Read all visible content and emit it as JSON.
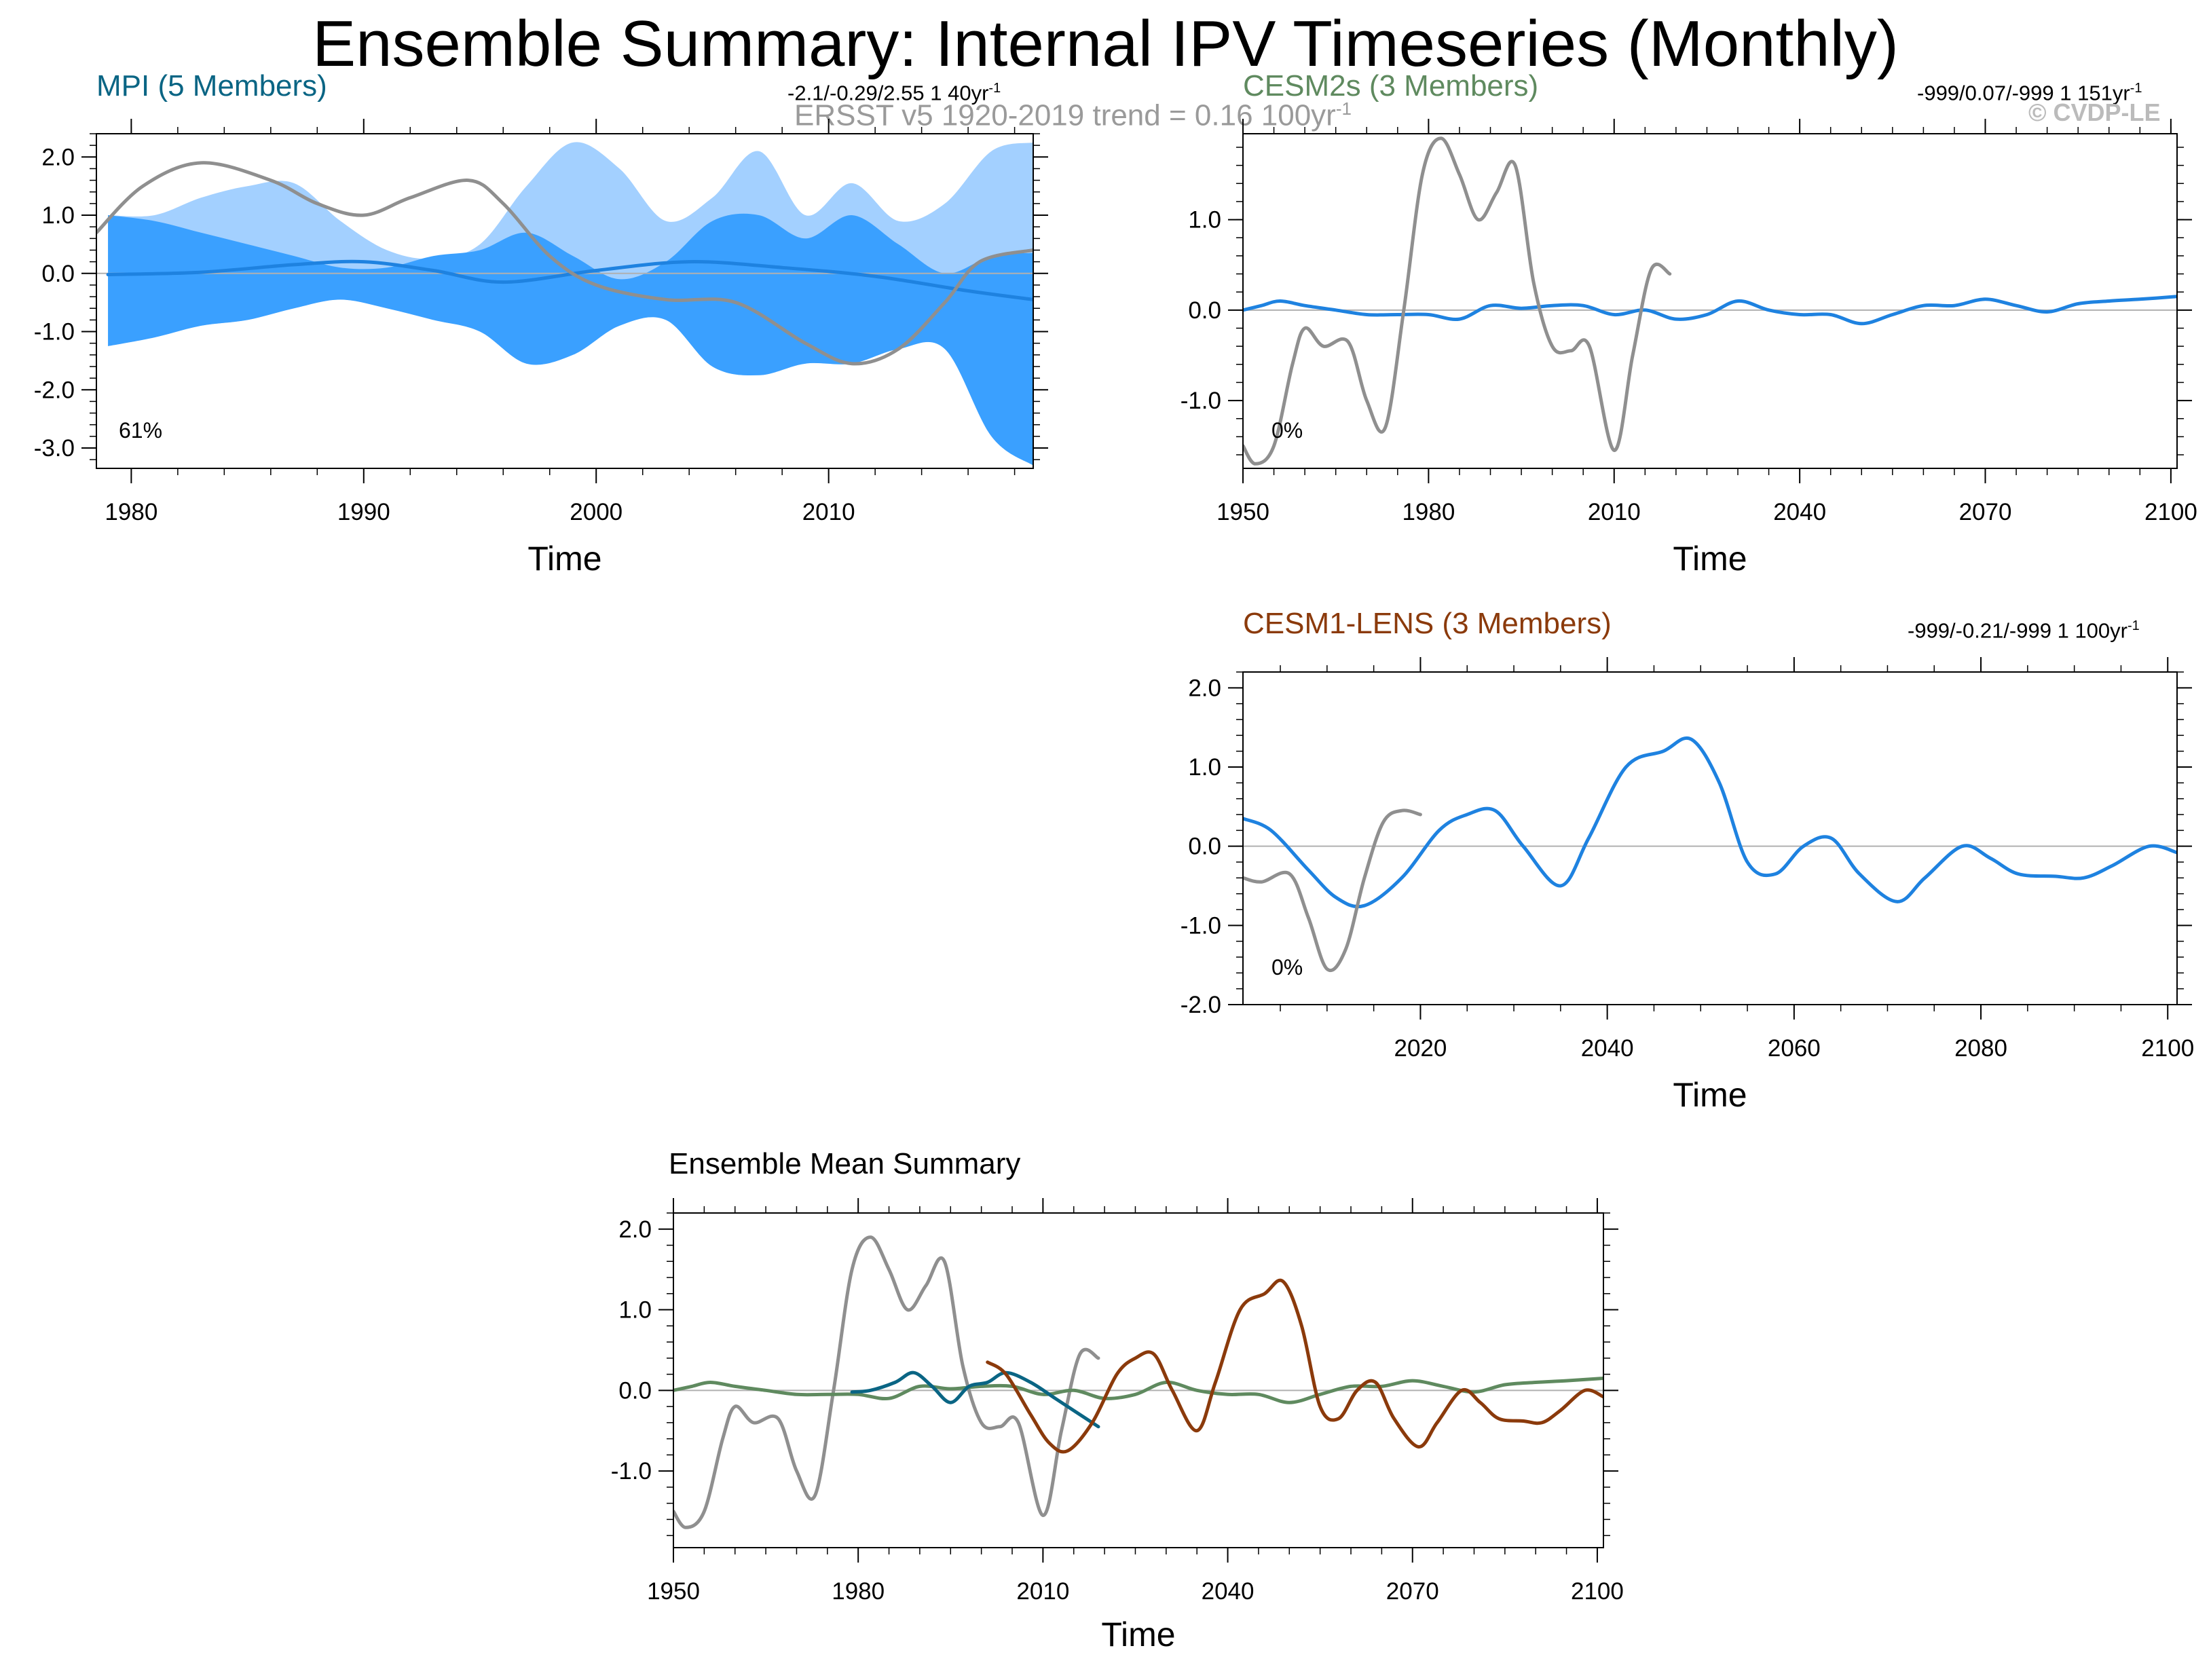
{
  "title": "Ensemble Summary: Internal IPV Timeseries (Monthly)",
  "colors": {
    "mpi": "#0a6584",
    "cesm2": "#5f8a5f",
    "cesm1": "#8b3a0b",
    "obs": "#8f8f8f",
    "mean": "#1e82e0",
    "spread_outer": "#a3d0ff",
    "spread_inner": "#3aa0ff",
    "axis": "#000000",
    "zero": "#b0b0b0",
    "copyright": "#bbbbbb"
  },
  "copyright": "© CVDP-LE",
  "observations_label": "ERSST v5 1920-2019 trend = 0.16 100yr",
  "observations_label_sup": "-1",
  "chart_data": [
    {
      "id": "mpi",
      "type": "line",
      "title": "MPI (5 Members)",
      "stats": "-2.1/-0.29/2.55 1 40yr",
      "stats_sup": "-1",
      "percent_label": "61%",
      "xlabel": "Time",
      "ylabel": "",
      "xlim": [
        1978.5,
        2018.8
      ],
      "ylim": [
        -3.35,
        2.4
      ],
      "xticks": [
        1980,
        1990,
        2000,
        2010
      ],
      "yticks": [
        2.0,
        1.0,
        0.0,
        -1.0,
        -2.0,
        -3.0
      ],
      "ytick_labels": [
        "2.0",
        "1.0",
        "0.0",
        "-1.0",
        "-2.0",
        "-3.0"
      ],
      "series": [
        {
          "name": "Ensemble spread (min-max)",
          "kind": "band",
          "color_key": "spread_outer",
          "x": [
            1979,
            1981,
            1983,
            1985,
            1987,
            1989,
            1991,
            1993,
            1995,
            1997,
            1999,
            2001,
            2003,
            2005,
            2007,
            2009,
            2011,
            2013,
            2015,
            2017,
            2018.8
          ],
          "upper": [
            1.0,
            1.0,
            1.3,
            1.5,
            1.55,
            0.9,
            0.4,
            0.25,
            0.5,
            1.5,
            2.25,
            1.8,
            0.9,
            1.3,
            2.1,
            1.0,
            1.55,
            0.9,
            1.2,
            2.1,
            2.25
          ],
          "lower": [
            -1.25,
            -1.1,
            -0.9,
            -0.8,
            -0.6,
            -0.45,
            -0.6,
            -0.8,
            -1.0,
            -1.55,
            -1.4,
            -0.9,
            -0.8,
            -1.6,
            -1.75,
            -1.55,
            -1.55,
            -1.3,
            -1.3,
            -2.8,
            -3.3
          ]
        },
        {
          "name": "Ensemble spread (10-90%)",
          "kind": "band",
          "color_key": "spread_inner",
          "x": [
            1979,
            1981,
            1983,
            1985,
            1987,
            1989,
            1991,
            1993,
            1995,
            1997,
            1999,
            2001,
            2003,
            2005,
            2007,
            2009,
            2011,
            2013,
            2015,
            2017,
            2018.8
          ],
          "upper": [
            1.0,
            0.9,
            0.7,
            0.5,
            0.3,
            0.1,
            0.1,
            0.3,
            0.4,
            0.7,
            0.3,
            -0.1,
            0.2,
            0.9,
            1.0,
            0.6,
            1.0,
            0.5,
            0.0,
            0.3,
            0.35
          ],
          "lower": [
            -1.25,
            -1.1,
            -0.9,
            -0.8,
            -0.6,
            -0.45,
            -0.6,
            -0.8,
            -1.0,
            -1.55,
            -1.4,
            -0.9,
            -0.8,
            -1.6,
            -1.75,
            -1.55,
            -1.55,
            -1.3,
            -1.3,
            -2.8,
            -3.3
          ]
        },
        {
          "name": "Ensemble mean",
          "kind": "line",
          "color_key": "mean",
          "width": 5,
          "x": [
            1979,
            1983,
            1987,
            1990,
            1993,
            1996,
            2000,
            2004,
            2008,
            2012,
            2016,
            2018.8
          ],
          "y": [
            -0.02,
            0.02,
            0.15,
            0.2,
            0.05,
            -0.15,
            0.05,
            0.2,
            0.1,
            -0.05,
            -0.3,
            -0.45
          ]
        },
        {
          "name": "ERSST v5",
          "kind": "line",
          "color_key": "obs",
          "width": 5,
          "x": [
            1978.5,
            1980.5,
            1983,
            1986,
            1988,
            1990,
            1992,
            1994.5,
            1996,
            1998,
            2000,
            2003,
            2006,
            2009,
            2011,
            2013,
            2015,
            2016.5,
            2018.8
          ],
          "y": [
            0.7,
            1.5,
            1.9,
            1.6,
            1.2,
            1.0,
            1.3,
            1.6,
            1.2,
            0.3,
            -0.2,
            -0.45,
            -0.5,
            -1.2,
            -1.55,
            -1.3,
            -0.5,
            0.2,
            0.4
          ]
        }
      ]
    },
    {
      "id": "cesm2",
      "type": "line",
      "title": "CESM2s (3 Members)",
      "stats": "-999/0.07/-999 1 151yr",
      "stats_sup": "-1",
      "percent_label": "0%",
      "xlabel": "Time",
      "ylabel": "",
      "xlim": [
        1950,
        2101
      ],
      "ylim": [
        -1.75,
        1.95
      ],
      "xticks": [
        1950,
        1980,
        2010,
        2040,
        2070,
        2100
      ],
      "yticks": [
        1.0,
        0.0,
        -1.0
      ],
      "ytick_labels": [
        "1.0",
        "0.0",
        "-1.0"
      ],
      "series": [
        {
          "name": "Ensemble mean",
          "kind": "line",
          "color_key": "mean",
          "width": 5,
          "x": [
            1950,
            1953,
            1956,
            1960,
            1965,
            1970,
            1975,
            1980,
            1985,
            1990,
            1995,
            2000,
            2005,
            2010,
            2015,
            2020,
            2025,
            2030,
            2035,
            2040,
            2045,
            2050,
            2055,
            2060,
            2065,
            2070,
            2075,
            2080,
            2085,
            2090,
            2095,
            2101
          ],
          "y": [
            0.0,
            0.05,
            0.1,
            0.05,
            0.0,
            -0.05,
            -0.05,
            -0.05,
            -0.1,
            0.05,
            0.02,
            0.05,
            0.05,
            -0.05,
            0.0,
            -0.1,
            -0.05,
            0.1,
            0.0,
            -0.05,
            -0.05,
            -0.15,
            -0.05,
            0.05,
            0.05,
            0.12,
            0.05,
            -0.02,
            0.07,
            0.1,
            0.12,
            0.15
          ]
        },
        {
          "name": "ERSST v5",
          "kind": "line",
          "color_key": "obs",
          "width": 5,
          "x": [
            1950,
            1952,
            1955,
            1958,
            1960,
            1963,
            1967,
            1970,
            1973,
            1976,
            1979,
            1982,
            1985,
            1988,
            1991,
            1994,
            1997,
            2000,
            2003,
            2006,
            2010,
            2013,
            2016,
            2019
          ],
          "y": [
            -1.5,
            -1.7,
            -1.5,
            -0.6,
            -0.2,
            -0.4,
            -0.35,
            -1.0,
            -1.3,
            0.0,
            1.5,
            1.9,
            1.5,
            1.0,
            1.3,
            1.6,
            0.3,
            -0.4,
            -0.45,
            -0.4,
            -1.55,
            -0.5,
            0.45,
            0.4
          ]
        }
      ]
    },
    {
      "id": "cesm1",
      "type": "line",
      "title": "CESM1-LENS (3 Members)",
      "stats": "-999/-0.21/-999 1 100yr",
      "stats_sup": "-1",
      "percent_label": "0%",
      "xlabel": "Time",
      "ylabel": "",
      "xlim": [
        2001,
        2101
      ],
      "ylim": [
        -2.0,
        2.2
      ],
      "xticks": [
        2020,
        2040,
        2060,
        2080,
        2100
      ],
      "yticks": [
        2.0,
        1.0,
        0.0,
        -1.0,
        -2.0
      ],
      "ytick_labels": [
        "2.0",
        "1.0",
        "0.0",
        "-1.0",
        "-2.0"
      ],
      "series": [
        {
          "name": "Ensemble mean",
          "kind": "line",
          "color_key": "mean",
          "width": 5,
          "x": [
            2001,
            2004,
            2008,
            2011,
            2014,
            2018,
            2022,
            2025,
            2028,
            2031,
            2035,
            2038,
            2042,
            2046,
            2049,
            2052,
            2055,
            2058,
            2061,
            2064,
            2067,
            2071,
            2074,
            2078,
            2081,
            2084,
            2088,
            2091,
            2094,
            2098,
            2101
          ],
          "y": [
            0.35,
            0.2,
            -0.3,
            -0.65,
            -0.75,
            -0.4,
            0.2,
            0.4,
            0.45,
            0.0,
            -0.5,
            0.1,
            1.0,
            1.2,
            1.35,
            0.8,
            -0.2,
            -0.35,
            0.0,
            0.1,
            -0.35,
            -0.7,
            -0.4,
            0.0,
            -0.15,
            -0.35,
            -0.38,
            -0.4,
            -0.25,
            0.0,
            -0.08
          ]
        },
        {
          "name": "ERSST v5",
          "kind": "line",
          "color_key": "obs",
          "width": 5,
          "x": [
            2001,
            2003,
            2006,
            2008,
            2010,
            2012,
            2014,
            2016,
            2018,
            2020
          ],
          "y": [
            -0.4,
            -0.45,
            -0.35,
            -0.9,
            -1.55,
            -1.3,
            -0.4,
            0.3,
            0.45,
            0.4
          ]
        }
      ]
    },
    {
      "id": "ensemble-mean",
      "type": "line",
      "title": "Ensemble Mean Summary",
      "xlabel": "Time",
      "ylabel": "",
      "xlim": [
        1950,
        2101
      ],
      "ylim": [
        -1.95,
        2.2
      ],
      "xticks": [
        1950,
        1980,
        2010,
        2040,
        2070,
        2100
      ],
      "yticks": [
        2.0,
        1.0,
        0.0,
        -1.0
      ],
      "ytick_labels": [
        "2.0",
        "1.0",
        "0.0",
        "-1.0"
      ],
      "series": [
        {
          "name": "ERSST v5",
          "kind": "line",
          "color_key": "obs",
          "width": 5,
          "x": [
            1950,
            1952,
            1955,
            1958,
            1960,
            1963,
            1967,
            1970,
            1973,
            1976,
            1979,
            1982,
            1985,
            1988,
            1991,
            1994,
            1997,
            2000,
            2003,
            2006,
            2010,
            2013,
            2016,
            2019
          ],
          "y": [
            -1.5,
            -1.7,
            -1.5,
            -0.6,
            -0.2,
            -0.4,
            -0.35,
            -1.0,
            -1.3,
            0.0,
            1.5,
            1.9,
            1.5,
            1.0,
            1.3,
            1.6,
            0.3,
            -0.4,
            -0.45,
            -0.4,
            -1.55,
            -0.5,
            0.45,
            0.4
          ]
        },
        {
          "name": "CESM2s",
          "kind": "line",
          "color_key": "cesm2",
          "width": 5,
          "x": [
            1950,
            1953,
            1956,
            1960,
            1965,
            1970,
            1975,
            1980,
            1985,
            1990,
            1995,
            2000,
            2005,
            2010,
            2015,
            2020,
            2025,
            2030,
            2035,
            2040,
            2045,
            2050,
            2055,
            2060,
            2065,
            2070,
            2075,
            2080,
            2085,
            2090,
            2095,
            2101
          ],
          "y": [
            0.0,
            0.05,
            0.1,
            0.05,
            0.0,
            -0.05,
            -0.05,
            -0.05,
            -0.1,
            0.05,
            0.02,
            0.05,
            0.05,
            -0.05,
            0.0,
            -0.1,
            -0.05,
            0.1,
            0.0,
            -0.05,
            -0.05,
            -0.15,
            -0.05,
            0.05,
            0.05,
            0.12,
            0.05,
            -0.02,
            0.07,
            0.1,
            0.12,
            0.15
          ]
        },
        {
          "name": "MPI",
          "kind": "line",
          "color_key": "mpi",
          "width": 5,
          "x": [
            1979,
            1982,
            1986,
            1989,
            1992,
            1995,
            1998,
            2001,
            2004,
            2008,
            2012,
            2016,
            2019
          ],
          "y": [
            -0.02,
            0.0,
            0.1,
            0.22,
            0.05,
            -0.15,
            0.05,
            0.1,
            0.22,
            0.1,
            -0.1,
            -0.3,
            -0.45
          ]
        },
        {
          "name": "CESM1-LENS",
          "kind": "line",
          "color_key": "cesm1",
          "width": 5,
          "x": [
            2001,
            2004,
            2008,
            2011,
            2014,
            2018,
            2022,
            2025,
            2028,
            2031,
            2035,
            2038,
            2042,
            2046,
            2049,
            2052,
            2055,
            2058,
            2061,
            2064,
            2067,
            2071,
            2074,
            2078,
            2081,
            2084,
            2088,
            2091,
            2094,
            2098,
            2101
          ],
          "y": [
            0.35,
            0.2,
            -0.3,
            -0.65,
            -0.75,
            -0.4,
            0.2,
            0.4,
            0.45,
            0.0,
            -0.5,
            0.1,
            1.0,
            1.2,
            1.35,
            0.8,
            -0.2,
            -0.35,
            0.0,
            0.1,
            -0.35,
            -0.7,
            -0.4,
            0.0,
            -0.15,
            -0.35,
            -0.38,
            -0.4,
            -0.25,
            0.0,
            -0.08
          ]
        }
      ]
    }
  ]
}
